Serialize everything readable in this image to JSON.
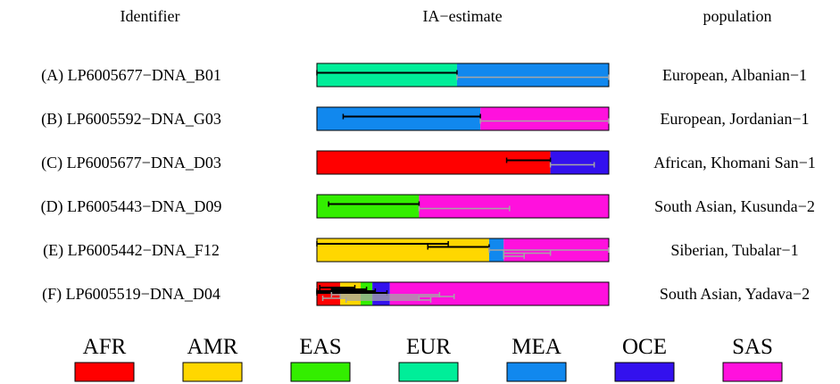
{
  "chart_data": {
    "type": "bar",
    "orientation": "horizontal-stacked",
    "headers": {
      "identifier": "Identifier",
      "estimate": "IA−estimate",
      "population": "population"
    },
    "ancestries": [
      {
        "code": "AFR",
        "color": "#ff0000"
      },
      {
        "code": "AMR",
        "color": "#ffd700"
      },
      {
        "code": "EAS",
        "color": "#33ee00"
      },
      {
        "code": "EUR",
        "color": "#00ee99"
      },
      {
        "code": "MEA",
        "color": "#1188ee"
      },
      {
        "code": "OCE",
        "color": "#3311ee"
      },
      {
        "code": "SAS",
        "color": "#ff11dd"
      }
    ],
    "xlim": [
      0,
      1
    ],
    "rows": [
      {
        "identifier": "(A) LP6005677−DNA_B01",
        "population": "European, Albanian−1",
        "segments": [
          {
            "ancestry": "EUR",
            "value": 0.48
          },
          {
            "ancestry": "MEA",
            "value": 0.52
          }
        ],
        "intervals": [
          {
            "ancestry": "EUR",
            "low": 0.0,
            "high": 0.48,
            "color": "#000000"
          },
          {
            "ancestry": "MEA",
            "low": 0.48,
            "high": 1.0,
            "color": "#a6a6a6"
          }
        ]
      },
      {
        "identifier": "(B) LP6005592−DNA_G03",
        "population": "European, Jordanian−1",
        "segments": [
          {
            "ancestry": "MEA",
            "value": 0.56
          },
          {
            "ancestry": "SAS",
            "value": 0.44
          }
        ],
        "intervals": [
          {
            "ancestry": "MEA",
            "low": 0.09,
            "high": 0.56,
            "color": "#000000"
          },
          {
            "ancestry": "SAS",
            "low": 0.56,
            "high": 1.0,
            "color": "#a6a6a6"
          }
        ]
      },
      {
        "identifier": "(C) LP6005677−DNA_D03",
        "population": "African, Khomani San−1",
        "segments": [
          {
            "ancestry": "AFR",
            "value": 0.8
          },
          {
            "ancestry": "OCE",
            "value": 0.2
          }
        ],
        "intervals": [
          {
            "ancestry": "AFR",
            "low": 0.65,
            "high": 0.8,
            "color": "#000000"
          },
          {
            "ancestry": "OCE",
            "low": 0.8,
            "high": 0.95,
            "color": "#a6a6a6"
          }
        ]
      },
      {
        "identifier": "(D) LP6005443−DNA_D09",
        "population": "South Asian, Kusunda−2",
        "segments": [
          {
            "ancestry": "EAS",
            "value": 0.35
          },
          {
            "ancestry": "SAS",
            "value": 0.65
          }
        ],
        "intervals": [
          {
            "ancestry": "EAS",
            "low": 0.04,
            "high": 0.35,
            "color": "#000000"
          },
          {
            "ancestry": "SAS",
            "low": 0.35,
            "high": 0.66,
            "color": "#a6a6a6"
          }
        ]
      },
      {
        "identifier": "(E)  LP6005442−DNA_F12",
        "population": "Siberian, Tubalar−1",
        "segments": [
          {
            "ancestry": "AMR",
            "value": 0.59
          },
          {
            "ancestry": "MEA",
            "value": 0.05
          },
          {
            "ancestry": "SAS",
            "value": 0.36
          }
        ],
        "intervals": [
          {
            "ancestry": "AMR",
            "low": 0.0,
            "high": 0.45,
            "color": "#000000"
          },
          {
            "ancestry": "AMR",
            "low": 0.38,
            "high": 0.59,
            "color": "#000000"
          },
          {
            "ancestry": "MEA",
            "low": 0.59,
            "high": 1.0,
            "color": "#a6a6a6"
          },
          {
            "ancestry": "MEA",
            "low": 0.64,
            "high": 0.8,
            "color": "#a6a6a6"
          },
          {
            "ancestry": "MEA",
            "low": 0.64,
            "high": 0.71,
            "color": "#a6a6a6"
          }
        ]
      },
      {
        "identifier": "(F) LP6005519−DNA_D04",
        "population": "South Asian, Yadava−2",
        "segments": [
          {
            "ancestry": "AFR",
            "value": 0.08
          },
          {
            "ancestry": "AMR",
            "value": 0.07
          },
          {
            "ancestry": "EAS",
            "value": 0.04
          },
          {
            "ancestry": "OCE",
            "value": 0.06
          },
          {
            "ancestry": "SAS",
            "value": 0.75
          }
        ],
        "intervals": [
          {
            "ancestry": "AFR",
            "low": 0.01,
            "high": 0.13,
            "color": "#000000"
          },
          {
            "ancestry": "AMR",
            "low": 0.05,
            "high": 0.17,
            "color": "#000000"
          },
          {
            "ancestry": "EAS",
            "low": 0.0,
            "high": 0.2,
            "color": "#000000"
          },
          {
            "ancestry": "OCE",
            "low": 0.0,
            "high": 0.24,
            "color": "#000000"
          },
          {
            "ancestry": "SAS",
            "low": 0.05,
            "high": 0.42,
            "color": "#a6a6a6"
          },
          {
            "ancestry": "SAS",
            "low": 0.08,
            "high": 0.47,
            "color": "#a6a6a6"
          },
          {
            "ancestry": "SAS",
            "low": 0.02,
            "high": 0.35,
            "color": "#a6a6a6"
          },
          {
            "ancestry": "SAS",
            "low": 0.1,
            "high": 0.39,
            "color": "#a6a6a6"
          }
        ]
      }
    ]
  }
}
